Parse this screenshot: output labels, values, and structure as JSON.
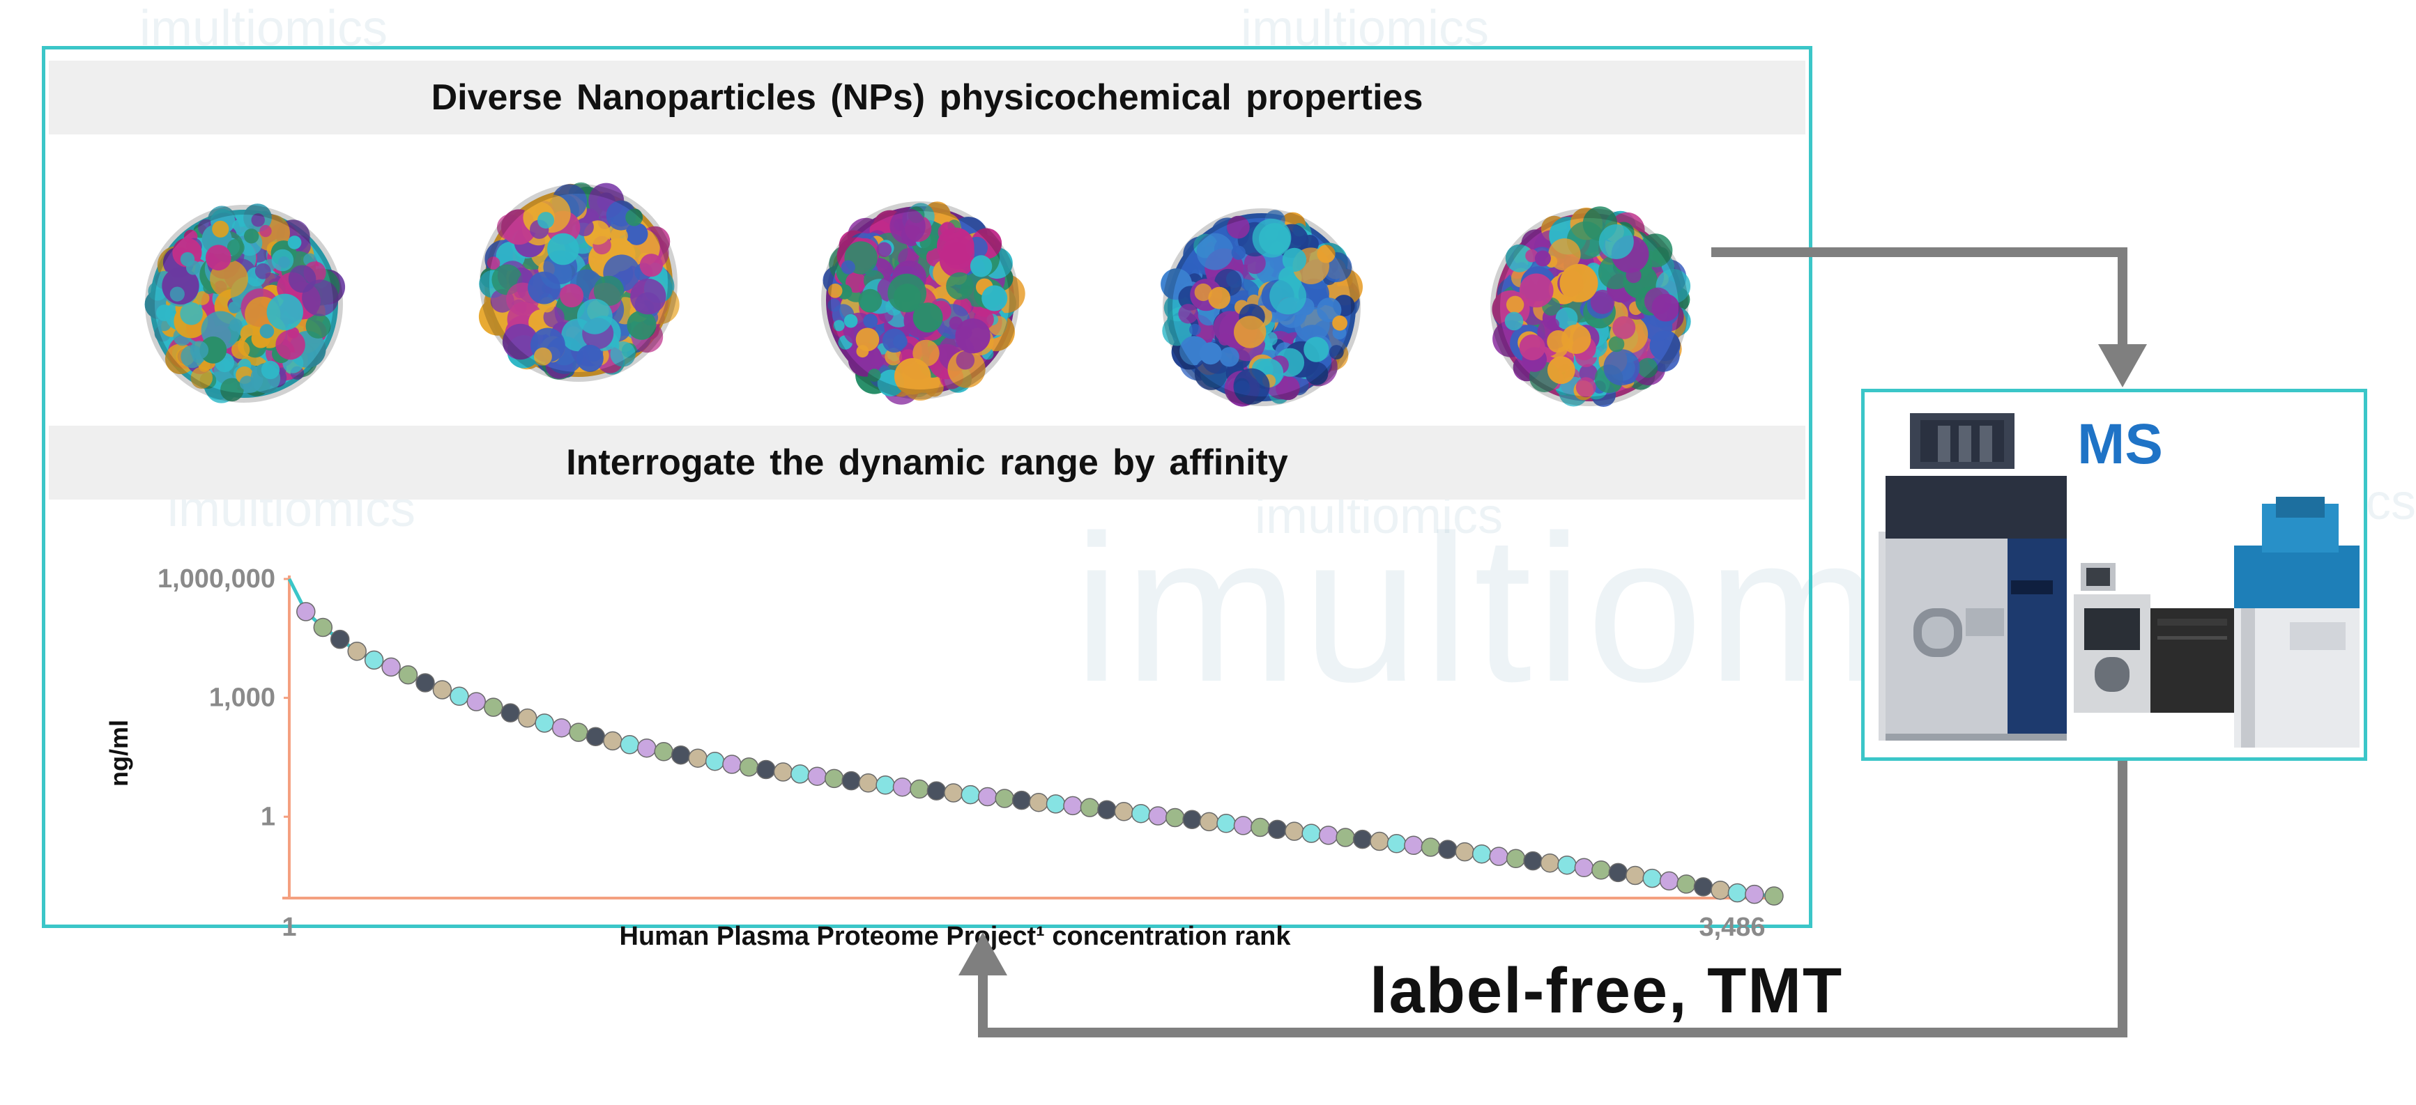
{
  "watermark": {
    "big": "imultiom",
    "small": "imultiomics"
  },
  "panel": {
    "header_top": "Diverse Nanoparticles (NPs) physicochemical properties",
    "header_bottom": "Interrogate the dynamic range by affinity"
  },
  "nanoparticles": [
    {
      "name": "np-1",
      "colors": [
        "#2fb8c8",
        "#2a8f6a",
        "#3aa0b5",
        "#c0308a",
        "#6a3aa0",
        "#e0a020"
      ]
    },
    {
      "name": "np-2",
      "colors": [
        "#e8a830",
        "#c03a90",
        "#2fb8c8",
        "#7a3aa8",
        "#2a8f6a",
        "#3b5fbf"
      ]
    },
    {
      "name": "np-3",
      "colors": [
        "#8a2fa0",
        "#c02a8a",
        "#2fb8c8",
        "#e8a030",
        "#3b5fbf",
        "#2a8f6a"
      ]
    },
    {
      "name": "np-4",
      "colors": [
        "#2f62c0",
        "#3b80d0",
        "#2fb8c8",
        "#e8a030",
        "#8a2fa0",
        "#1f3f8f"
      ]
    },
    {
      "name": "np-5",
      "colors": [
        "#c03a90",
        "#2a8f6a",
        "#e8a030",
        "#2fb8c8",
        "#8a2fa0",
        "#3b5fbf"
      ]
    }
  ],
  "chart_data": {
    "type": "scatter",
    "xlabel": "Human Plasma Proteome Project¹ concentration rank",
    "ylabel": "ng/ml",
    "y_scale": "log",
    "ylim": [
      0.01,
      1000000
    ],
    "xlim": [
      1,
      3486
    ],
    "x_tick_labels": [
      "1",
      "3,486"
    ],
    "y_tick_labels": [
      "1,000,000",
      "1,000",
      "1"
    ],
    "y_ticks": [
      1000000,
      1000,
      1
    ],
    "marker_colors": [
      "#86e3e3",
      "#c9a6e0",
      "#9db98a",
      "#4a5260",
      "#c8b89a"
    ],
    "points": [
      [
        1,
        1000000
      ],
      [
        40,
        150000
      ],
      [
        80,
        60000
      ],
      [
        120,
        30000
      ],
      [
        160,
        15000
      ],
      [
        200,
        9000
      ],
      [
        240,
        6000
      ],
      [
        280,
        3800
      ],
      [
        320,
        2400
      ],
      [
        360,
        1600
      ],
      [
        400,
        1100
      ],
      [
        440,
        800
      ],
      [
        480,
        580
      ],
      [
        520,
        420
      ],
      [
        560,
        310
      ],
      [
        600,
        230
      ],
      [
        640,
        175
      ],
      [
        680,
        135
      ],
      [
        720,
        105
      ],
      [
        760,
        82
      ],
      [
        800,
        66
      ],
      [
        840,
        54
      ],
      [
        880,
        44
      ],
      [
        920,
        36
      ],
      [
        960,
        30
      ],
      [
        1000,
        25
      ],
      [
        1040,
        21
      ],
      [
        1080,
        18
      ],
      [
        1120,
        15.5
      ],
      [
        1160,
        13.5
      ],
      [
        1200,
        12
      ],
      [
        1240,
        10.5
      ],
      [
        1280,
        9.2
      ],
      [
        1320,
        8.1
      ],
      [
        1360,
        7.1
      ],
      [
        1400,
        6.3
      ],
      [
        1440,
        5.6
      ],
      [
        1480,
        5.0
      ],
      [
        1520,
        4.5
      ],
      [
        1560,
        4.0
      ],
      [
        1600,
        3.6
      ],
      [
        1640,
        3.2
      ],
      [
        1680,
        2.9
      ],
      [
        1720,
        2.6
      ],
      [
        1760,
        2.3
      ],
      [
        1800,
        2.1
      ],
      [
        1840,
        1.9
      ],
      [
        1880,
        1.7
      ],
      [
        1920,
        1.5
      ],
      [
        1960,
        1.35
      ],
      [
        2000,
        1.2
      ],
      [
        2040,
        1.05
      ],
      [
        2080,
        0.95
      ],
      [
        2120,
        0.85
      ],
      [
        2160,
        0.75
      ],
      [
        2200,
        0.68
      ],
      [
        2240,
        0.6
      ],
      [
        2280,
        0.54
      ],
      [
        2320,
        0.48
      ],
      [
        2360,
        0.43
      ],
      [
        2400,
        0.38
      ],
      [
        2440,
        0.34
      ],
      [
        2480,
        0.3
      ],
      [
        2520,
        0.27
      ],
      [
        2560,
        0.24
      ],
      [
        2600,
        0.21
      ],
      [
        2640,
        0.19
      ],
      [
        2680,
        0.17
      ],
      [
        2720,
        0.15
      ],
      [
        2760,
        0.13
      ],
      [
        2800,
        0.115
      ],
      [
        2840,
        0.1
      ],
      [
        2880,
        0.088
      ],
      [
        2920,
        0.077
      ],
      [
        2960,
        0.068
      ],
      [
        3000,
        0.06
      ],
      [
        3040,
        0.052
      ],
      [
        3080,
        0.045
      ],
      [
        3120,
        0.039
      ],
      [
        3160,
        0.033
      ],
      [
        3200,
        0.028
      ],
      [
        3240,
        0.024
      ],
      [
        3280,
        0.02
      ],
      [
        3320,
        0.017
      ],
      [
        3360,
        0.014
      ],
      [
        3400,
        0.012
      ],
      [
        3440,
        0.011
      ],
      [
        3486,
        0.01
      ]
    ]
  },
  "ms": {
    "label": "MS"
  },
  "flow": {
    "label": "label-free, TMT"
  }
}
